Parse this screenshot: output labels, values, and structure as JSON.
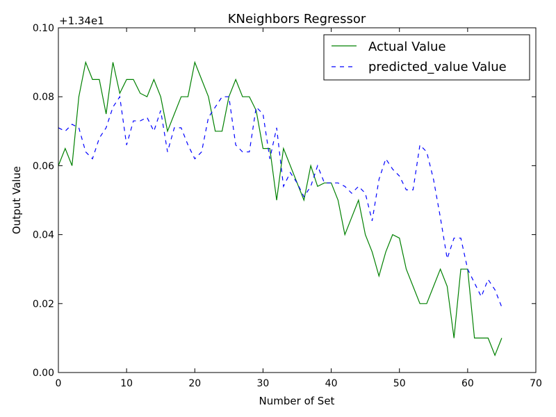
{
  "chart_data": {
    "type": "line",
    "title": "KNeighbors Regressor",
    "xlabel": "Number of Set",
    "ylabel": "Output Value",
    "y_offset_label": "+1.34e1",
    "xlim": [
      0,
      70
    ],
    "ylim": [
      0.0,
      0.1
    ],
    "x_ticks": [
      0,
      10,
      20,
      30,
      40,
      50,
      60,
      70
    ],
    "x_tick_labels": [
      "0",
      "10",
      "20",
      "30",
      "40",
      "50",
      "60",
      "70"
    ],
    "y_ticks": [
      0.0,
      0.02,
      0.04,
      0.06,
      0.08,
      0.1
    ],
    "y_tick_labels": [
      "0.00",
      "0.02",
      "0.04",
      "0.06",
      "0.08",
      "0.10"
    ],
    "grid": false,
    "legend_position": "top-right",
    "x": [
      0,
      1,
      2,
      3,
      4,
      5,
      6,
      7,
      8,
      9,
      10,
      11,
      12,
      13,
      14,
      15,
      16,
      17,
      18,
      19,
      20,
      21,
      22,
      23,
      24,
      25,
      26,
      27,
      28,
      29,
      30,
      31,
      32,
      33,
      34,
      35,
      36,
      37,
      38,
      39,
      40,
      41,
      42,
      43,
      44,
      45,
      46,
      47,
      48,
      49,
      50,
      51,
      52,
      53,
      54,
      55,
      56,
      57,
      58,
      59,
      60,
      61,
      62,
      63,
      64,
      65
    ],
    "series": [
      {
        "name": "Actual Value",
        "color": "#008000",
        "style": "solid",
        "values": [
          0.06,
          0.065,
          0.06,
          0.08,
          0.09,
          0.085,
          0.085,
          0.075,
          0.09,
          0.081,
          0.085,
          0.085,
          0.081,
          0.08,
          0.085,
          0.08,
          0.07,
          0.075,
          0.08,
          0.08,
          0.09,
          0.085,
          0.08,
          0.07,
          0.07,
          0.08,
          0.085,
          0.08,
          0.08,
          0.076,
          0.065,
          0.065,
          0.05,
          0.065,
          0.06,
          0.055,
          0.05,
          0.06,
          0.054,
          0.055,
          0.055,
          0.05,
          0.04,
          0.045,
          0.05,
          0.04,
          0.035,
          0.028,
          0.035,
          0.04,
          0.039,
          0.03,
          0.025,
          0.02,
          0.02,
          0.025,
          0.03,
          0.025,
          0.01,
          0.03,
          0.03,
          0.01,
          0.01,
          0.01,
          0.005,
          0.01
        ]
      },
      {
        "name": "predicted_value Value",
        "color": "#0000ff",
        "style": "dashed",
        "values": [
          0.071,
          0.07,
          0.072,
          0.071,
          0.064,
          0.062,
          0.068,
          0.071,
          0.077,
          0.08,
          0.066,
          0.073,
          0.073,
          0.074,
          0.07,
          0.076,
          0.064,
          0.071,
          0.071,
          0.066,
          0.062,
          0.064,
          0.074,
          0.077,
          0.08,
          0.08,
          0.066,
          0.064,
          0.064,
          0.077,
          0.075,
          0.062,
          0.071,
          0.054,
          0.058,
          0.055,
          0.051,
          0.054,
          0.06,
          0.055,
          0.055,
          0.055,
          0.054,
          0.052,
          0.054,
          0.052,
          0.044,
          0.056,
          0.062,
          0.059,
          0.057,
          0.053,
          0.053,
          0.066,
          0.064,
          0.056,
          0.045,
          0.033,
          0.039,
          0.039,
          0.03,
          0.026,
          0.022,
          0.027,
          0.024,
          0.019
        ]
      }
    ]
  }
}
